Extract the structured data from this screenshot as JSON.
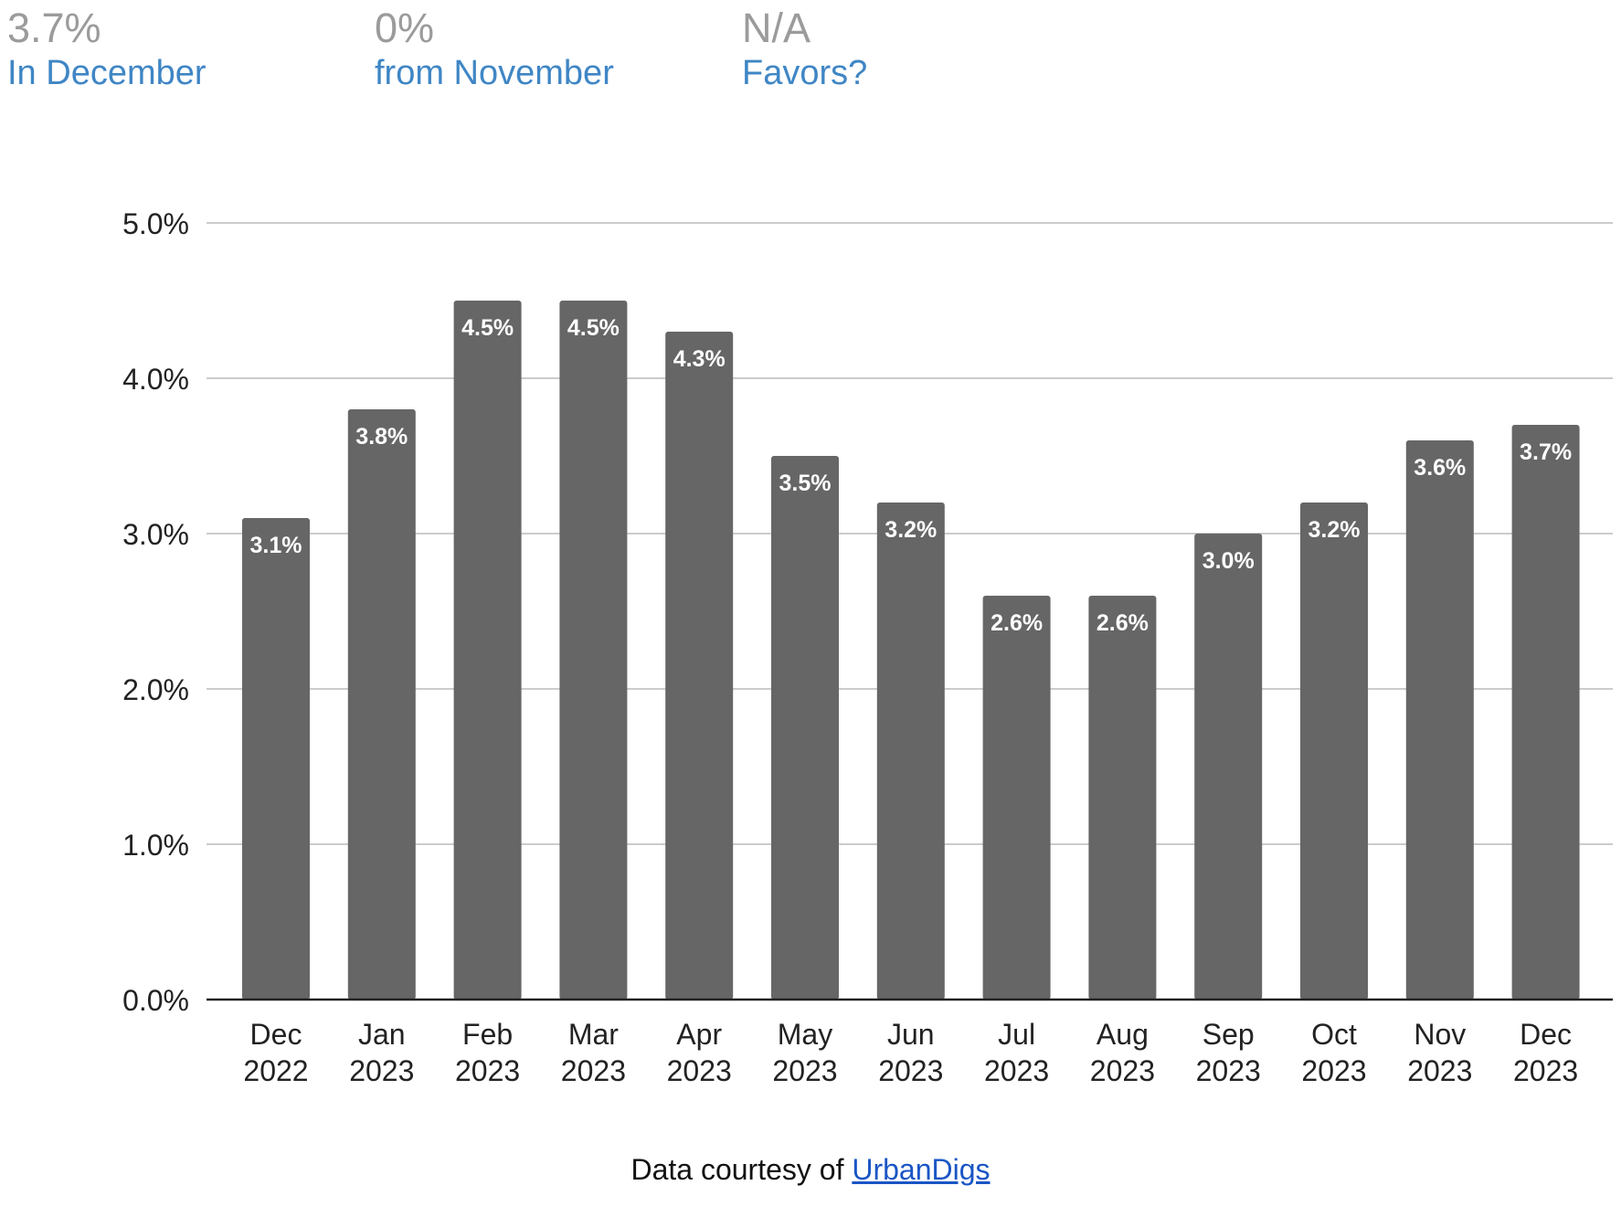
{
  "stats": [
    {
      "value": "3.7%",
      "label": "In December"
    },
    {
      "value": "0%",
      "label": "from November"
    },
    {
      "value": "N/A",
      "label": "Favors?"
    }
  ],
  "colors": {
    "bar": "#666666",
    "grid": "#cccccc",
    "stat_value": "#9b9b9b",
    "stat_label": "#3f86c5",
    "link": "#1a55c4"
  },
  "chart_data": {
    "type": "bar",
    "categories": [
      "Dec 2022",
      "Jan 2023",
      "Feb 2023",
      "Mar 2023",
      "Apr 2023",
      "May 2023",
      "Jun 2023",
      "Jul 2023",
      "Aug 2023",
      "Sep 2023",
      "Oct 2023",
      "Nov 2023",
      "Dec 2023"
    ],
    "category_lines": [
      [
        "Dec",
        "2022"
      ],
      [
        "Jan",
        "2023"
      ],
      [
        "Feb",
        "2023"
      ],
      [
        "Mar",
        "2023"
      ],
      [
        "Apr",
        "2023"
      ],
      [
        "May",
        "2023"
      ],
      [
        "Jun",
        "2023"
      ],
      [
        "Jul",
        "2023"
      ],
      [
        "Aug",
        "2023"
      ],
      [
        "Sep",
        "2023"
      ],
      [
        "Oct",
        "2023"
      ],
      [
        "Nov",
        "2023"
      ],
      [
        "Dec",
        "2023"
      ]
    ],
    "values": [
      3.1,
      3.8,
      4.5,
      4.5,
      4.3,
      3.5,
      3.2,
      2.6,
      2.6,
      3.0,
      3.2,
      3.6,
      3.7
    ],
    "data_labels": [
      "3.1%",
      "3.8%",
      "4.5%",
      "4.5%",
      "4.3%",
      "3.5%",
      "3.2%",
      "2.6%",
      "2.6%",
      "3.0%",
      "3.2%",
      "3.6%",
      "3.7%"
    ],
    "ylim": [
      0,
      5
    ],
    "yticks": [
      0,
      1,
      2,
      3,
      4,
      5
    ],
    "ytick_labels": [
      "0.0%",
      "1.0%",
      "2.0%",
      "3.0%",
      "4.0%",
      "5.0%"
    ],
    "grid": true,
    "title": "",
    "xlabel": "",
    "ylabel": ""
  },
  "credit": {
    "prefix": "Data courtesy of ",
    "link_text": "UrbanDigs"
  }
}
